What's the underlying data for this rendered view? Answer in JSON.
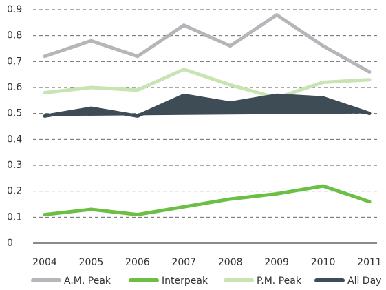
{
  "chart_data": {
    "type": "line",
    "categories": [
      "2004",
      "2005",
      "2006",
      "2007",
      "2008",
      "2009",
      "2010",
      "2011"
    ],
    "series": [
      {
        "name": "A.M. Peak",
        "color": "#b5b5ba",
        "values": [
          0.72,
          0.78,
          0.72,
          0.84,
          0.76,
          0.88,
          0.76,
          0.66
        ]
      },
      {
        "name": "Interpeak",
        "color": "#6cbf45",
        "values": [
          0.11,
          0.13,
          0.11,
          0.14,
          0.17,
          0.19,
          0.22,
          0.16
        ]
      },
      {
        "name": "P.M. Peak",
        "color": "#c7e4b2",
        "values": [
          0.58,
          0.6,
          0.59,
          0.67,
          0.61,
          0.56,
          0.62,
          0.63
        ]
      },
      {
        "name": "All Day",
        "color": "#3e4c56",
        "fill": true,
        "values": [
          0.49,
          0.52,
          0.49,
          0.57,
          0.54,
          0.57,
          0.56,
          0.5
        ]
      }
    ],
    "ylim": [
      0,
      0.9
    ],
    "yticks": [
      0,
      0.1,
      0.2,
      0.3,
      0.4,
      0.5,
      0.6,
      0.7,
      0.8,
      0.9
    ],
    "grid": true,
    "legend": "bottom"
  }
}
